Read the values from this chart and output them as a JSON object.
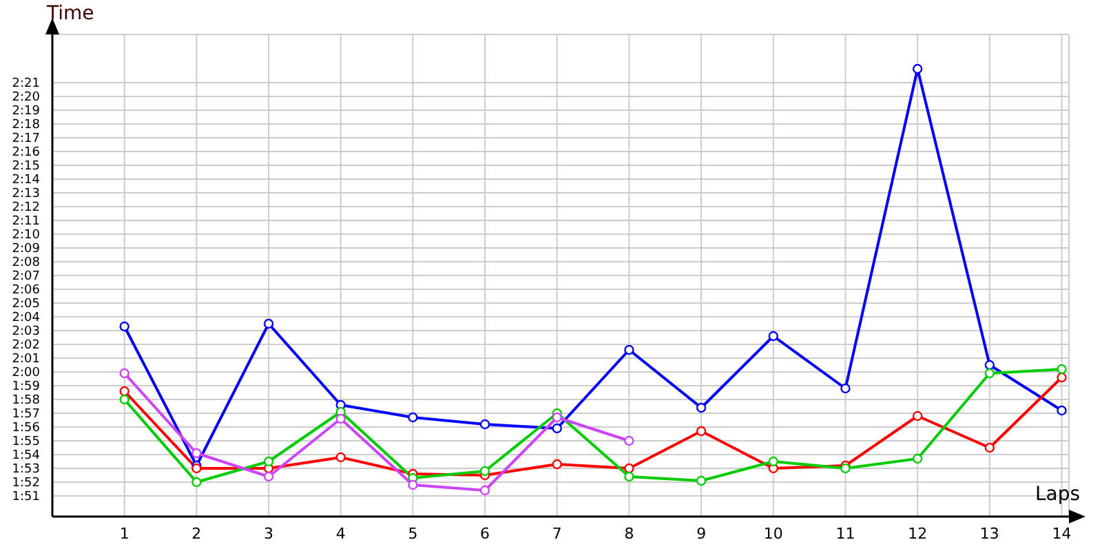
{
  "chart_data": {
    "type": "line",
    "xlabel": "Laps",
    "ylabel": "Time",
    "marker": "circle",
    "grid": true,
    "x": [
      1,
      2,
      3,
      4,
      5,
      6,
      7,
      8,
      9,
      10,
      11,
      12,
      13,
      14
    ],
    "xlim": [
      0,
      14.1
    ],
    "xticks": [
      1,
      2,
      3,
      4,
      5,
      6,
      7,
      8,
      9,
      10,
      11,
      12,
      13,
      14
    ],
    "ylim": [
      109.5,
      144.5
    ],
    "yticks": [
      {
        "value": 111,
        "label": "1:51"
      },
      {
        "value": 112,
        "label": "1:52"
      },
      {
        "value": 113,
        "label": "1:53"
      },
      {
        "value": 114,
        "label": "1:54"
      },
      {
        "value": 115,
        "label": "1:55"
      },
      {
        "value": 116,
        "label": "1:56"
      },
      {
        "value": 117,
        "label": "1:57"
      },
      {
        "value": 118,
        "label": "1:58"
      },
      {
        "value": 119,
        "label": "1:59"
      },
      {
        "value": 120,
        "label": "2:00"
      },
      {
        "value": 121,
        "label": "2:01"
      },
      {
        "value": 122,
        "label": "2:02"
      },
      {
        "value": 123,
        "label": "2:03"
      },
      {
        "value": 124,
        "label": "2:04"
      },
      {
        "value": 125,
        "label": "2:05"
      },
      {
        "value": 126,
        "label": "2:06"
      },
      {
        "value": 127,
        "label": "2:07"
      },
      {
        "value": 128,
        "label": "2:08"
      },
      {
        "value": 129,
        "label": "2:09"
      },
      {
        "value": 130,
        "label": "2:10"
      },
      {
        "value": 131,
        "label": "2:11"
      },
      {
        "value": 132,
        "label": "2:12"
      },
      {
        "value": 133,
        "label": "2:13"
      },
      {
        "value": 134,
        "label": "2:14"
      },
      {
        "value": 135,
        "label": "2:15"
      },
      {
        "value": 136,
        "label": "2:16"
      },
      {
        "value": 137,
        "label": "2:17"
      },
      {
        "value": 138,
        "label": "2:18"
      },
      {
        "value": 139,
        "label": "2:19"
      },
      {
        "value": 140,
        "label": "2:20"
      },
      {
        "value": 141,
        "label": "2:21"
      }
    ],
    "series": [
      {
        "color": "#0000ff",
        "values": [
          123.3,
          113.2,
          123.5,
          117.6,
          116.7,
          116.2,
          115.9,
          121.6,
          117.4,
          122.6,
          118.8,
          142.0,
          120.5,
          117.2
        ]
      },
      {
        "color": "#ff0000",
        "values": [
          118.6,
          113.0,
          113.0,
          113.8,
          112.6,
          112.5,
          113.3,
          113.0,
          115.7,
          113.0,
          113.2,
          116.8,
          114.5,
          119.6
        ]
      },
      {
        "color": "#00cc00",
        "values": [
          118.0,
          112.0,
          113.5,
          117.1,
          112.3,
          112.8,
          117.0,
          112.4,
          112.1,
          113.5,
          113.0,
          113.7,
          119.9,
          120.2
        ]
      },
      {
        "color": "#cc44ff",
        "values": [
          119.9,
          114.1,
          112.4,
          116.6,
          111.8,
          111.4,
          116.7,
          115.0,
          null,
          null,
          null,
          null,
          null,
          null
        ]
      }
    ]
  }
}
